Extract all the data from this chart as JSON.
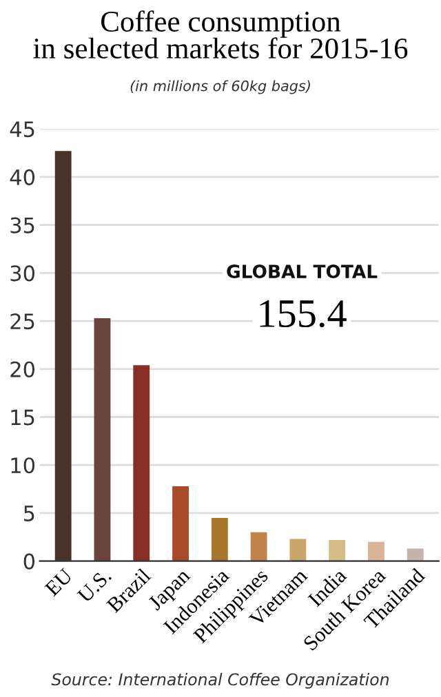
{
  "chart_data": {
    "type": "bar",
    "title": "Coffee consumption\nin selected markets for 2015-16",
    "subtitle": "(in millions of 60kg bags)",
    "categories": [
      "EU",
      "U.S.",
      "Brazil",
      "Japan",
      "Indonesia",
      "Philippines",
      "Vietnam",
      "India",
      "South Korea",
      "Thailand"
    ],
    "values": [
      42.7,
      25.3,
      20.4,
      7.8,
      4.5,
      3.0,
      2.3,
      2.2,
      2.0,
      1.3
    ],
    "colors": [
      "#4a3229",
      "#6b443b",
      "#882e25",
      "#a84a2a",
      "#a8762a",
      "#c0844a",
      "#c8a66a",
      "#d4bc84",
      "#d9b498",
      "#c4b4ac"
    ],
    "ylim": [
      0,
      45
    ],
    "yticks": [
      0,
      5,
      10,
      15,
      20,
      25,
      30,
      35,
      40,
      45
    ],
    "grid": "y",
    "annotations": [
      "GLOBAL TOTAL",
      "155.4",
      "Source: International Coffee Organization"
    ]
  }
}
